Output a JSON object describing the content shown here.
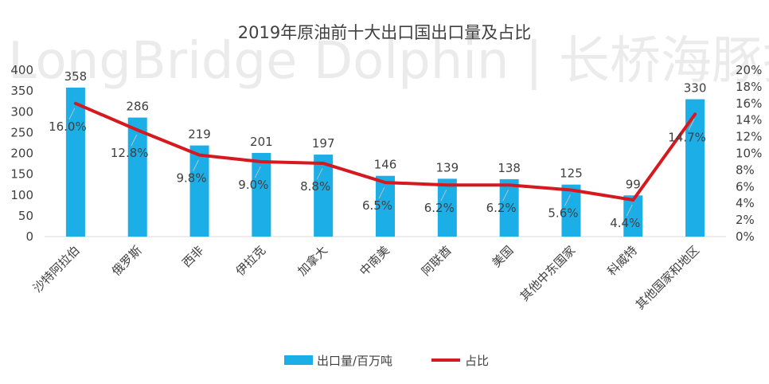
{
  "chart_data": {
    "type": "bar+line",
    "title": "2019年原油前十大出口国出口量及占比",
    "watermark": "LongBridge Dolphin | 长桥海豚投研",
    "categories": [
      "沙特阿拉伯",
      "俄罗斯",
      "西非",
      "伊拉克",
      "加拿大",
      "中南美",
      "阿联酋",
      "美国",
      "其他中东国家",
      "科威特",
      "其他国家和地区"
    ],
    "series": [
      {
        "name": "出口量/百万吨",
        "type": "bar",
        "axis": "left",
        "color": "#1CAEE6",
        "values": [
          358,
          286,
          219,
          201,
          197,
          146,
          139,
          138,
          125,
          99,
          330
        ],
        "labels": [
          "358",
          "286",
          "219",
          "201",
          "197",
          "146",
          "139",
          "138",
          "125",
          "99",
          "330"
        ]
      },
      {
        "name": "占比",
        "type": "line",
        "axis": "right",
        "color": "#D6191E",
        "values": [
          16.0,
          12.8,
          9.8,
          9.0,
          8.8,
          6.5,
          6.2,
          6.2,
          5.6,
          4.4,
          14.7
        ],
        "labels": [
          "16.0%",
          "12.8%",
          "9.8%",
          "9.0%",
          "8.8%",
          "6.5%",
          "6.2%",
          "6.2%",
          "5.6%",
          "4.4%",
          "14.7%"
        ]
      }
    ],
    "y_left": {
      "min": 0,
      "max": 400,
      "step": 50,
      "ticks": [
        "0",
        "50",
        "100",
        "150",
        "200",
        "250",
        "300",
        "350",
        "400"
      ]
    },
    "y_right": {
      "min": 0,
      "max": 20,
      "step": 2,
      "ticks": [
        "0%",
        "2%",
        "4%",
        "6%",
        "8%",
        "10%",
        "12%",
        "14%",
        "16%",
        "18%",
        "20%"
      ]
    },
    "legend": {
      "position": "bottom",
      "items": [
        "出口量/百万吨",
        "占比"
      ]
    },
    "grid": false
  }
}
